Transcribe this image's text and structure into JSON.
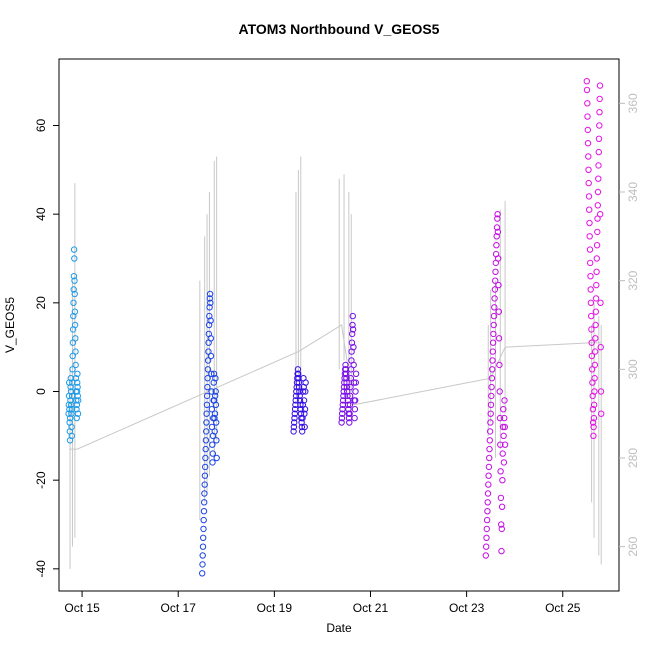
{
  "chart_data": {
    "type": "scatter",
    "title": "ATOM3 Northbound V_GEOS5",
    "xlabel": "Date",
    "ylabel": "V_GEOS5",
    "x_ticks": [
      "Oct 15",
      "Oct 17",
      "Oct 19",
      "Oct 21",
      "Oct 23",
      "Oct 25"
    ],
    "xlim": [
      "Oct 14 12:30",
      "Oct 26 04:00"
    ],
    "ylim": [
      -45,
      75
    ],
    "y_ticks": [
      -40,
      -20,
      0,
      20,
      40,
      60
    ],
    "y2_ticks": [
      260,
      280,
      300,
      320,
      340,
      360
    ],
    "y2lim": [
      250,
      370
    ],
    "grid": false,
    "legend": "none",
    "colors": {
      "background": "#ffffff",
      "secondary_line": "#c8c8c8",
      "secondary_axis": "#bebebe"
    },
    "flights": [
      {
        "date": "Oct 14-15",
        "day_range": [
          14.72,
          14.92
        ],
        "color": "#1e9be8",
        "values": [
          -5,
          -3,
          -1,
          2,
          -4,
          -7,
          -9,
          -11,
          -6,
          -2,
          1,
          3,
          0,
          -3,
          -5,
          -8,
          -10,
          -4,
          -1,
          2,
          5,
          8,
          11,
          14,
          17,
          20,
          23,
          26,
          32,
          30,
          25,
          22,
          18,
          15,
          12,
          9,
          6,
          3,
          0,
          -2,
          -4,
          -6,
          -3,
          0,
          2,
          4,
          1,
          -1,
          -5,
          -2
        ]
      },
      {
        "date": "Oct 17",
        "day_range": [
          17.5,
          17.8
        ],
        "color": "#1c45e6",
        "values": [
          -41,
          -39,
          -37,
          -35,
          -33,
          -31,
          -29,
          -27,
          -25,
          -23,
          -21,
          -19,
          -17,
          -15,
          -13,
          -11,
          -9,
          -7,
          -5,
          -3,
          -1,
          1,
          3,
          5,
          7,
          9,
          11,
          13,
          15,
          17,
          19,
          21,
          22,
          20,
          16,
          12,
          8,
          4,
          0,
          -4,
          -8,
          -12,
          -16,
          -14,
          -10,
          -6,
          -2,
          2,
          4,
          -2,
          -6,
          -9,
          -5,
          -1,
          3,
          0,
          -3,
          -7,
          -11,
          -15
        ]
      },
      {
        "date": "Oct 19",
        "day_range": [
          19.4,
          19.65
        ],
        "color": "#3510e5",
        "values": [
          -9,
          -8,
          -7,
          -6,
          -5,
          -4,
          -3,
          -2,
          -1,
          0,
          1,
          2,
          3,
          4,
          5,
          4,
          3,
          2,
          1,
          0,
          -1,
          -2,
          -3,
          -4,
          -5,
          -6,
          -7,
          -8,
          -9,
          -6,
          -3,
          0,
          3,
          1,
          -2,
          -5,
          -8,
          -4,
          0,
          2
        ]
      },
      {
        "date": "Oct 20",
        "day_range": [
          20.4,
          20.7
        ],
        "color": "#7a0fe6",
        "values": [
          -7,
          -6,
          -5,
          -4,
          -3,
          -2,
          -1,
          0,
          1,
          2,
          3,
          4,
          5,
          6,
          5,
          4,
          3,
          2,
          1,
          0,
          -1,
          -2,
          -3,
          -4,
          -5,
          -6,
          -7,
          -5,
          -3,
          -1,
          1,
          3,
          5,
          7,
          9,
          11,
          13,
          15,
          17,
          14,
          10,
          6,
          2,
          -2,
          -6,
          -4,
          -2,
          0,
          2,
          4
        ]
      },
      {
        "date": "Oct 23",
        "day_range": [
          23.4,
          23.8
        ],
        "color": "#c60ee6",
        "values": [
          -37,
          -35,
          -33,
          -31,
          -29,
          -27,
          -25,
          -23,
          -21,
          -19,
          -17,
          -15,
          -13,
          -11,
          -9,
          -7,
          -5,
          -3,
          -1,
          1,
          3,
          5,
          7,
          9,
          11,
          13,
          15,
          17,
          19,
          21,
          23,
          25,
          27,
          29,
          31,
          33,
          35,
          37,
          39,
          40,
          36,
          30,
          24,
          18,
          12,
          6,
          0,
          -6,
          -12,
          -18,
          -24,
          -30,
          -36,
          -31,
          -26,
          -20,
          -14,
          -8,
          -4,
          -10,
          -16,
          -6,
          -2,
          -8,
          -12
        ]
      },
      {
        "date": "Oct 25",
        "day_range": [
          25.5,
          25.8
        ],
        "color": "#e612e6",
        "values": [
          70,
          68,
          65,
          62,
          59,
          56,
          53,
          50,
          47,
          44,
          41,
          38,
          35,
          32,
          29,
          26,
          23,
          20,
          17,
          14,
          11,
          8,
          5,
          2,
          -1,
          -4,
          -7,
          -10,
          -8,
          -6,
          -3,
          0,
          3,
          6,
          9,
          12,
          15,
          18,
          21,
          24,
          27,
          30,
          33,
          36,
          39,
          42,
          45,
          48,
          51,
          54,
          57,
          60,
          63,
          66,
          69,
          40,
          20,
          10,
          0,
          -5
        ]
      }
    ],
    "secondary_series": {
      "axis": "right",
      "nodes": [
        [
          14.73,
          282
        ],
        [
          14.9,
          282
        ],
        [
          19.5,
          304
        ],
        [
          20.4,
          310
        ],
        [
          20.65,
          292
        ],
        [
          23.5,
          298
        ],
        [
          23.8,
          305
        ],
        [
          25.6,
          306
        ],
        [
          25.8,
          306
        ]
      ],
      "spikes": [
        [
          14.75,
          255,
          300
        ],
        [
          14.8,
          260,
          320
        ],
        [
          14.85,
          262,
          342
        ],
        [
          17.45,
          266,
          320
        ],
        [
          17.55,
          270,
          330
        ],
        [
          17.6,
          272,
          335
        ],
        [
          17.65,
          276,
          340
        ],
        [
          17.75,
          280,
          347
        ],
        [
          17.8,
          284,
          348
        ],
        [
          19.45,
          296,
          340
        ],
        [
          19.5,
          298,
          345
        ],
        [
          19.55,
          298,
          348
        ],
        [
          20.35,
          300,
          343
        ],
        [
          20.45,
          302,
          344
        ],
        [
          20.55,
          298,
          340
        ],
        [
          20.6,
          296,
          335
        ],
        [
          23.45,
          285,
          310
        ],
        [
          23.5,
          288,
          318
        ],
        [
          23.6,
          280,
          320
        ],
        [
          23.7,
          282,
          336
        ],
        [
          23.8,
          290,
          338
        ],
        [
          25.6,
          270,
          310
        ],
        [
          25.65,
          262,
          315
        ],
        [
          25.75,
          258,
          312
        ],
        [
          25.8,
          256,
          310
        ]
      ]
    }
  }
}
